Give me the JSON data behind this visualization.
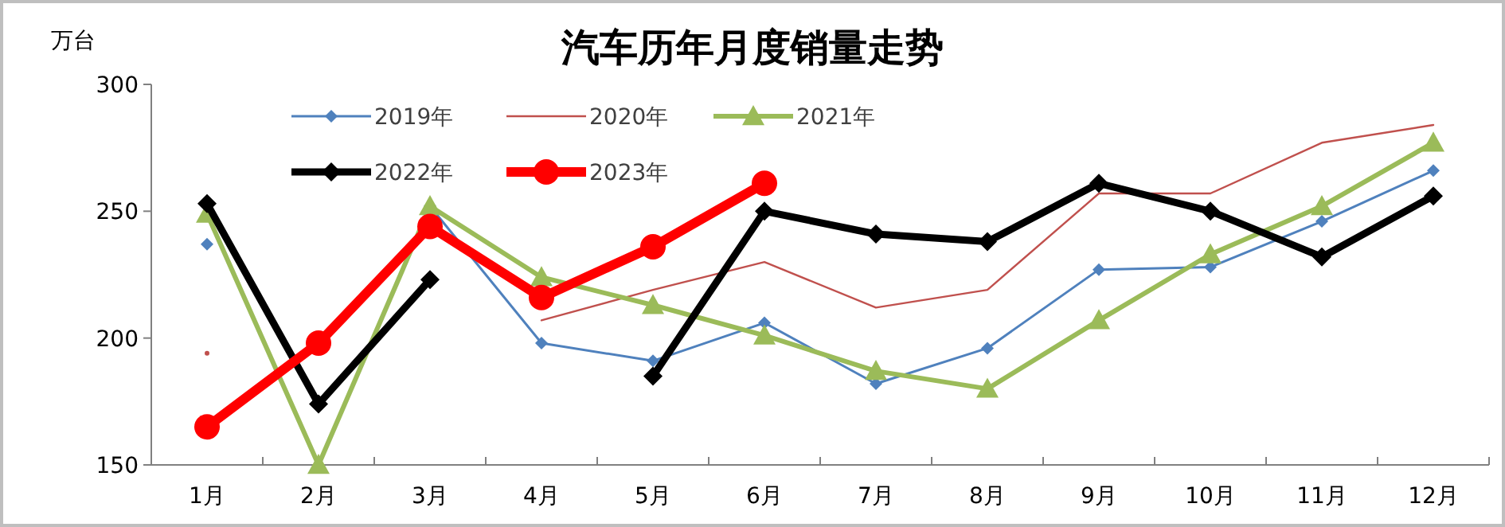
{
  "chart_data": {
    "type": "line",
    "title": "汽车历年月度销量走势",
    "ylabel": "万台",
    "categories": [
      "1月",
      "2月",
      "3月",
      "4月",
      "5月",
      "6月",
      "7月",
      "8月",
      "9月",
      "10月",
      "11月",
      "12月"
    ],
    "ylim": [
      150,
      300
    ],
    "yticks": [
      150,
      200,
      250,
      300
    ],
    "grid": false,
    "legend": "top",
    "series": [
      {
        "name": "2019年",
        "color": "#4f81bd",
        "marker": "diamond",
        "values": [
          237,
          null,
          252,
          198,
          191,
          206,
          182,
          196,
          227,
          228,
          246,
          266
        ]
      },
      {
        "name": "2020年",
        "color": "#c0504d",
        "marker": "none",
        "values": [
          194,
          null,
          null,
          207,
          219,
          230,
          212,
          219,
          257,
          257,
          277,
          284
        ]
      },
      {
        "name": "2021年",
        "color": "#9bbb59",
        "marker": "triangle",
        "values": [
          249,
          150,
          252,
          224,
          213,
          201,
          187,
          180,
          207,
          233,
          252,
          277
        ]
      },
      {
        "name": "2022年",
        "color": "#000000",
        "marker": "diamond",
        "values": [
          253,
          174,
          223,
          null,
          185,
          250,
          241,
          238,
          261,
          250,
          232,
          256
        ]
      },
      {
        "name": "2023年",
        "color": "#ff0000",
        "marker": "circle",
        "values": [
          165,
          198,
          244,
          216,
          236,
          261,
          null,
          null,
          null,
          null,
          null,
          null
        ]
      }
    ]
  }
}
